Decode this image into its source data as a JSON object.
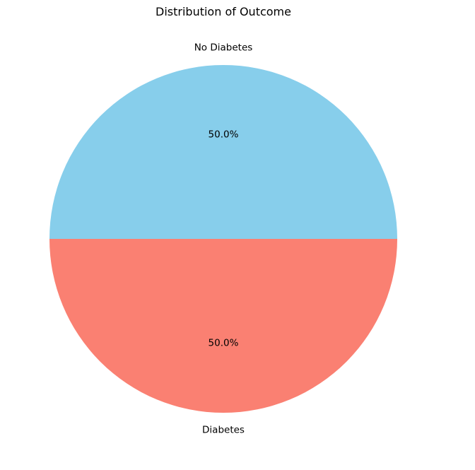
{
  "chart_data": {
    "type": "pie",
    "title": "Distribution of Outcome",
    "labels": [
      "No Diabetes",
      "Diabetes"
    ],
    "values": [
      50.0,
      50.0
    ],
    "percent_labels": [
      "50.0%",
      "50.0%"
    ],
    "colors": [
      "#87ceeb",
      "#fa8072"
    ],
    "start_angle_deg": 0,
    "direction": "counterclockwise",
    "legend": "none"
  }
}
